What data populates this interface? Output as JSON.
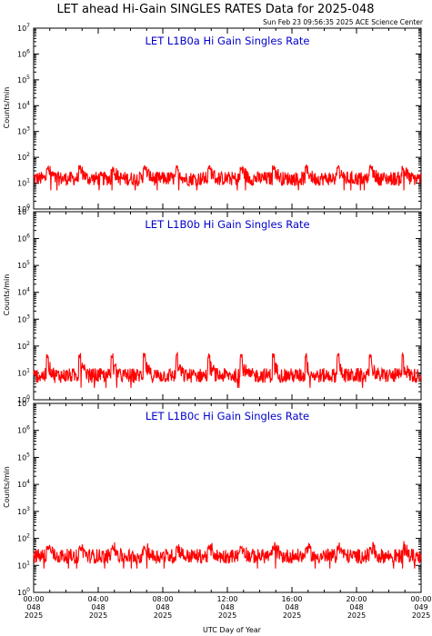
{
  "page": {
    "title": "LET ahead Hi-Gain SINGLES RATES Data for 2025-048",
    "timestamp": "Sun Feb 23 09:56:35 2025 ACE Science Center",
    "xlabel": "UTC Day of Year"
  },
  "colors": {
    "series": "#ff0000",
    "panel_title": "#0000cc",
    "axes": "#000000"
  },
  "chart_data": [
    {
      "type": "line",
      "title": "LET L1B0a Hi Gain Singles Rate",
      "ylabel": "Counts/min",
      "yscale": "log",
      "ylim": [
        1,
        10000000
      ],
      "y_tick_labels": [
        "10^0",
        "10^1",
        "10^2",
        "10^3",
        "10^4",
        "10^5",
        "10^6",
        "10^7"
      ],
      "xlim": [
        0,
        24
      ],
      "baseline": 15,
      "periodic_spikes": {
        "period_hours": 2,
        "peak": 45
      },
      "series": [
        {
          "values_summary": "typical 10-25 counts/min with periodic spikes to ~45 every 2 hours"
        }
      ]
    },
    {
      "type": "line",
      "title": "LET L1B0b Hi Gain Singles Rate",
      "ylabel": "Counts/min",
      "yscale": "log",
      "ylim": [
        1,
        10000000
      ],
      "y_tick_labels": [
        "10^0",
        "10^1",
        "10^2",
        "10^3",
        "10^4",
        "10^5",
        "10^6",
        "10^7"
      ],
      "xlim": [
        0,
        24
      ],
      "baseline": 8,
      "periodic_spikes": {
        "period_hours": 2,
        "peak": 50
      },
      "series": [
        {
          "values_summary": "typical 5-15 counts/min with periodic spikes to ~50 every 2 hours"
        }
      ]
    },
    {
      "type": "line",
      "title": "LET L1B0c Hi Gain Singles Rate",
      "ylabel": "Counts/min",
      "yscale": "log",
      "ylim": [
        1,
        10000000
      ],
      "y_tick_labels": [
        "10^0",
        "10^1",
        "10^2",
        "10^3",
        "10^4",
        "10^5",
        "10^6",
        "10^7"
      ],
      "xlim": [
        0,
        24
      ],
      "baseline": 22,
      "periodic_spikes": {
        "period_hours": 2,
        "peak": 50
      },
      "series": [
        {
          "values_summary": "typical 15-30 counts/min with periodic spikes to ~50 every 2 hours"
        }
      ]
    }
  ],
  "x_ticks": [
    {
      "hour": 0,
      "time": "00:00",
      "doy": "048",
      "year": "2025"
    },
    {
      "hour": 4,
      "time": "04:00",
      "doy": "048",
      "year": "2025"
    },
    {
      "hour": 8,
      "time": "08:00",
      "doy": "048",
      "year": "2025"
    },
    {
      "hour": 12,
      "time": "12:00",
      "doy": "048",
      "year": "2025"
    },
    {
      "hour": 16,
      "time": "16:00",
      "doy": "048",
      "year": "2025"
    },
    {
      "hour": 20,
      "time": "20:00",
      "doy": "048",
      "year": "2025"
    },
    {
      "hour": 24,
      "time": "00:00",
      "doy": "049",
      "year": "2025"
    }
  ]
}
